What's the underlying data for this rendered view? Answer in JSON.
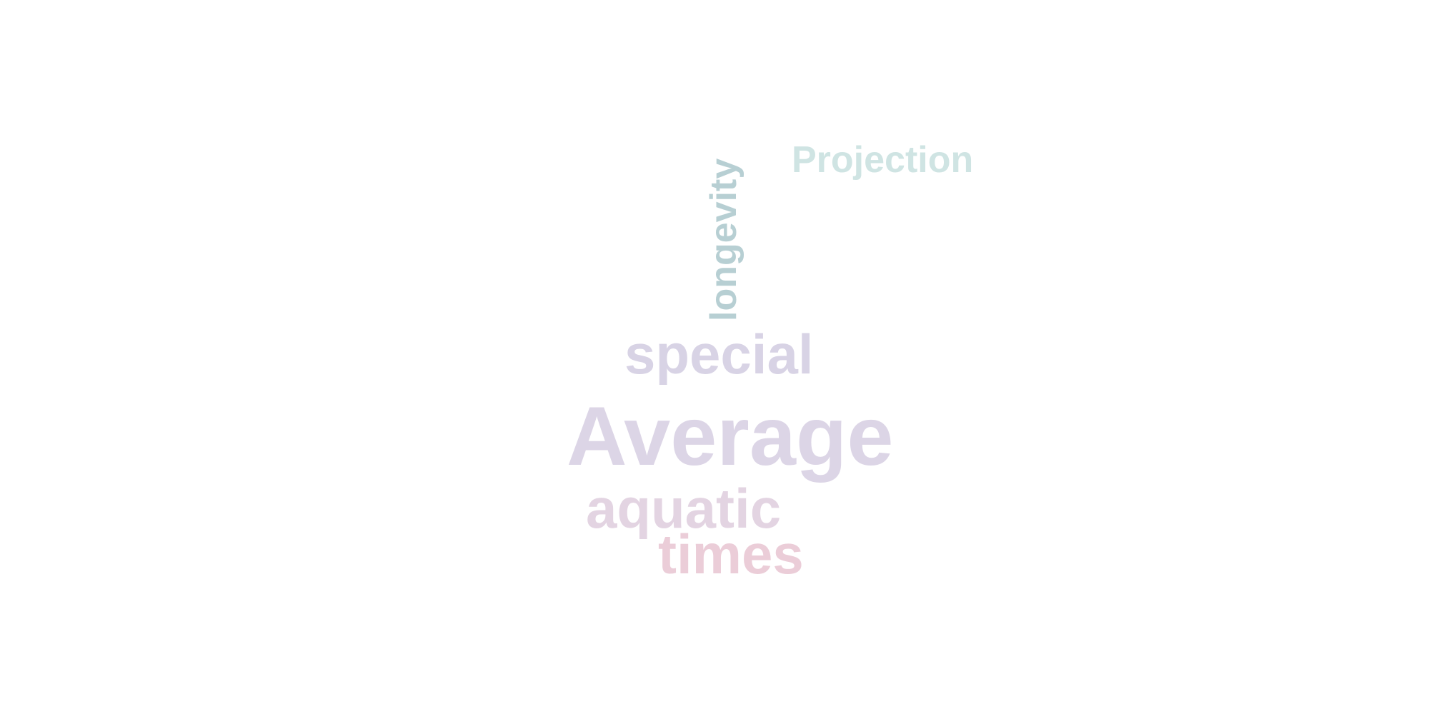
{
  "word_cloud": {
    "words": [
      {
        "id": "projection",
        "text": "Projection",
        "color": "#cfe4e3",
        "orientation": "horizontal"
      },
      {
        "id": "longevity",
        "text": "longevity",
        "color": "#b7cfd3",
        "orientation": "vertical"
      },
      {
        "id": "special",
        "text": "special",
        "color": "#d8d3e5",
        "orientation": "horizontal"
      },
      {
        "id": "average",
        "text": "Average",
        "color": "#dcd5e6",
        "orientation": "horizontal"
      },
      {
        "id": "aquatic",
        "text": "aquatic",
        "color": "#e3d4e2",
        "orientation": "horizontal"
      },
      {
        "id": "times",
        "text": "times",
        "color": "#ebcdd8",
        "orientation": "horizontal"
      }
    ]
  }
}
